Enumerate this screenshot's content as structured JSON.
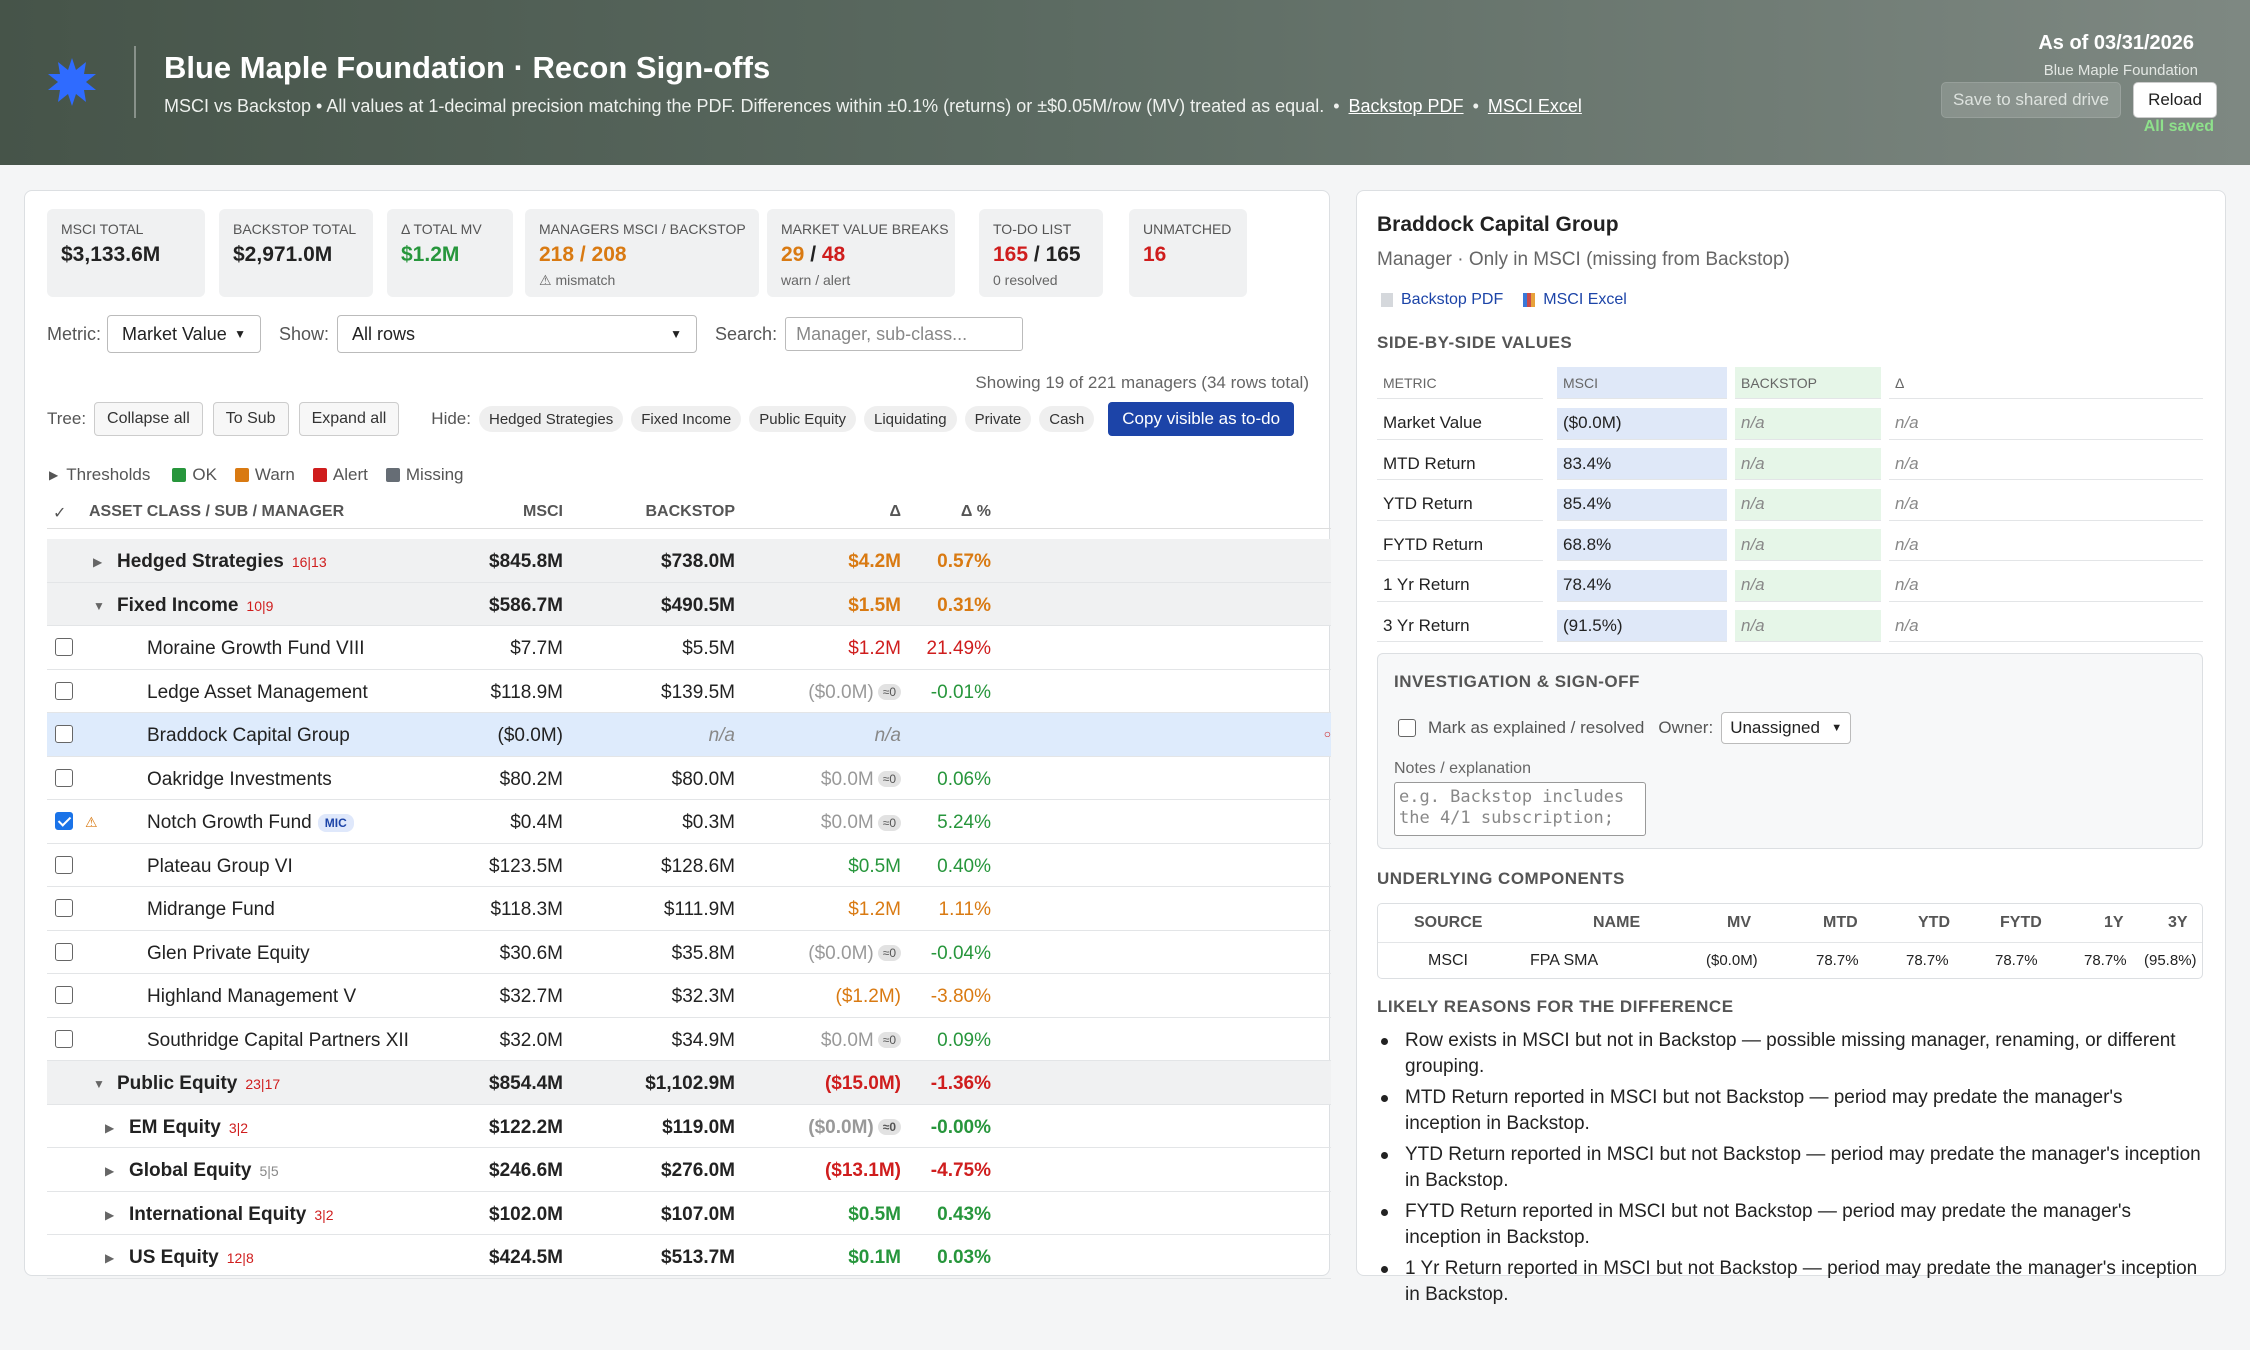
{
  "header": {
    "title": "Blue Maple Foundation · Recon Sign-offs",
    "subtitle": "MSCI vs Backstop  •  All values at 1-decimal precision matching the PDF. Differences within ±0.1% (returns) or ±$0.05M/row (MV) treated as equal.",
    "link_pdf": "Backstop PDF",
    "link_excel": "MSCI Excel",
    "as_of": "As of 03/31/2026",
    "org": "Blue Maple Foundation",
    "save_label": "Save to shared drive",
    "reload_label": "Reload",
    "saved_status": "All saved"
  },
  "cards": [
    {
      "label": "MSCI TOTAL",
      "value": "$3,133.6M"
    },
    {
      "label": "BACKSTOP TOTAL",
      "value": "$2,971.0M"
    },
    {
      "label": "Δ TOTAL MV",
      "value": "$1.2M"
    },
    {
      "label": "MANAGERS MSCI / BACKSTOP",
      "value": "218 / 208",
      "sub": "⚠ mismatch"
    },
    {
      "label": "MARKET VALUE BREAKS",
      "value_a": "29",
      "value_b": "48",
      "sub": "warn / alert"
    },
    {
      "label": "TO-DO LIST",
      "value_a": "165",
      "value_b": "165",
      "sub": "0 resolved"
    },
    {
      "label": "UNMATCHED",
      "value": "16"
    }
  ],
  "filters": {
    "metric_label": "Metric:",
    "metric_value": "Market Value",
    "show_label": "Show:",
    "show_value": "All rows",
    "search_label": "Search:",
    "search_placeholder": "Manager, sub-class..."
  },
  "showing": "Showing 19 of 221 managers (34 rows total)",
  "tree": {
    "label": "Tree:",
    "collapse": "Collapse all",
    "to_sub": "To Sub",
    "expand": "Expand all",
    "hide_label": "Hide:",
    "hide_pills": [
      "Hedged Strategies",
      "Fixed Income",
      "Public Equity",
      "Liquidating",
      "Private",
      "Cash"
    ],
    "copy": "Copy visible as to-do"
  },
  "legend": {
    "thresholds": "Thresholds",
    "ok": "OK",
    "warn": "Warn",
    "alert": "Alert",
    "missing": "Missing"
  },
  "colors": {
    "ok": "#27963c",
    "warn": "#d97a12",
    "alert": "#cf1d1d",
    "missing": "#666d75"
  },
  "table": {
    "check_header": "✓",
    "headers": {
      "name": "ASSET CLASS / SUB / MANAGER",
      "msci": "MSCI",
      "backstop": "BACKSTOP",
      "delta": "Δ",
      "delta_pct": "Δ %"
    },
    "rows": [
      {
        "type": "group",
        "name": "Hedged Strategies",
        "cnt": "16|13",
        "msci": "$845.8M",
        "backstop": "$738.0M",
        "delta": "$4.2M",
        "pct": "0.57%",
        "dc": "orange",
        "pc": "orange"
      },
      {
        "type": "group",
        "open": true,
        "name": "Fixed Income",
        "cnt": "10|9",
        "msci": "$586.7M",
        "backstop": "$490.5M",
        "delta": "$1.5M",
        "pct": "0.31%",
        "dc": "orange",
        "pc": "orange"
      },
      {
        "type": "mgr",
        "name": "Moraine Growth Fund VIII",
        "msci": "$7.7M",
        "backstop": "$5.5M",
        "delta": "$1.2M",
        "pct": "21.49%",
        "dc": "red",
        "pc": "red"
      },
      {
        "type": "mgr",
        "name": "Ledge Asset Management",
        "msci": "$118.9M",
        "backstop": "$139.5M",
        "delta": "($0.0M)",
        "eq": "≈0",
        "pct": "-0.01%",
        "dc": "gray",
        "pc": "green"
      },
      {
        "type": "mgr",
        "sel": true,
        "name": "Braddock Capital Group",
        "msci": "($0.0M)",
        "backstop": "n/a",
        "delta": "n/a",
        "pct": "",
        "na": true
      },
      {
        "type": "mgr",
        "name": "Oakridge Investments",
        "msci": "$80.2M",
        "backstop": "$80.0M",
        "delta": "$0.0M",
        "eq": "≈0",
        "pct": "0.06%",
        "dc": "gray",
        "pc": "green"
      },
      {
        "type": "mgr",
        "checked": true,
        "warn": true,
        "name": "Notch Growth Fund",
        "mic": "MIC",
        "msci": "$0.4M",
        "backstop": "$0.3M",
        "delta": "$0.0M",
        "eq": "≈0",
        "pct": "5.24%",
        "dc": "gray",
        "pc": "green"
      },
      {
        "type": "mgr",
        "name": "Plateau Group VI",
        "msci": "$123.5M",
        "backstop": "$128.6M",
        "delta": "$0.5M",
        "pct": "0.40%",
        "dc": "green",
        "pc": "green"
      },
      {
        "type": "mgr",
        "name": "Midrange Fund",
        "msci": "$118.3M",
        "backstop": "$111.9M",
        "delta": "$1.2M",
        "pct": "1.11%",
        "dc": "orange",
        "pc": "orange"
      },
      {
        "type": "mgr",
        "name": "Glen Private Equity",
        "msci": "$30.6M",
        "backstop": "$35.8M",
        "delta": "($0.0M)",
        "eq": "≈0",
        "pct": "-0.04%",
        "dc": "gray",
        "pc": "green"
      },
      {
        "type": "mgr",
        "name": "Highland Management V",
        "msci": "$32.7M",
        "backstop": "$32.3M",
        "delta": "($1.2M)",
        "pct": "-3.80%",
        "dc": "orange",
        "pc": "orange"
      },
      {
        "type": "mgr",
        "name": "Southridge Capital Partners XII",
        "msci": "$32.0M",
        "backstop": "$34.9M",
        "delta": "$0.0M",
        "eq": "≈0",
        "pct": "0.09%",
        "dc": "gray",
        "pc": "green"
      },
      {
        "type": "group",
        "open": true,
        "name": "Public Equity",
        "cnt": "23|17",
        "msci": "$854.4M",
        "backstop": "$1,102.9M",
        "delta": "($15.0M)",
        "pct": "-1.36%",
        "dc": "red",
        "pc": "red"
      },
      {
        "type": "sub",
        "name": "EM Equity",
        "cnt": "3|2",
        "msci": "$122.2M",
        "backstop": "$119.0M",
        "delta": "($0.0M)",
        "eq": "≈0",
        "pct": "-0.00%",
        "dc": "gray",
        "pc": "green"
      },
      {
        "type": "sub",
        "name": "Global Equity",
        "cnt": "5|5",
        "cntgray": true,
        "msci": "$246.6M",
        "backstop": "$276.0M",
        "delta": "($13.1M)",
        "pct": "-4.75%",
        "dc": "red",
        "pc": "red"
      },
      {
        "type": "sub",
        "name": "International Equity",
        "cnt": "3|2",
        "msci": "$102.0M",
        "backstop": "$107.0M",
        "delta": "$0.5M",
        "pct": "0.43%",
        "dc": "green",
        "pc": "green"
      },
      {
        "type": "sub",
        "name": "US Equity",
        "cnt": "12|8",
        "msci": "$424.5M",
        "backstop": "$513.7M",
        "delta": "$0.1M",
        "pct": "0.03%",
        "dc": "green",
        "pc": "green"
      }
    ]
  },
  "detail": {
    "title": "Braddock Capital Group",
    "subtitle": "Manager · Only in MSCI (missing from Backstop)",
    "link_pdf": "Backstop PDF",
    "link_excel": "MSCI Excel",
    "sbs_title": "SIDE-BY-SIDE VALUES",
    "sbs_headers": [
      "METRIC",
      "MSCI",
      "BACKSTOP",
      "Δ"
    ],
    "sbs_rows": [
      {
        "metric": "Market Value",
        "msci": "($0.0M)",
        "backstop": "n/a",
        "delta": "n/a"
      },
      {
        "metric": "MTD Return",
        "msci": "83.4%",
        "backstop": "n/a",
        "delta": "n/a"
      },
      {
        "metric": "YTD Return",
        "msci": "85.4%",
        "backstop": "n/a",
        "delta": "n/a"
      },
      {
        "metric": "FYTD Return",
        "msci": "68.8%",
        "backstop": "n/a",
        "delta": "n/a"
      },
      {
        "metric": "1 Yr Return",
        "msci": "78.4%",
        "backstop": "n/a",
        "delta": "n/a"
      },
      {
        "metric": "3 Yr Return",
        "msci": "(91.5%)",
        "backstop": "n/a",
        "delta": "n/a"
      }
    ],
    "inv_title": "INVESTIGATION & SIGN-OFF",
    "mark_label": "Mark as explained / resolved",
    "owner_label": "Owner:",
    "owner_value": "Unassigned",
    "notes_label": "Notes / explanation",
    "notes_placeholder": "e.g. Backstop includes the 4/1 subscription;",
    "comp_title": "UNDERLYING COMPONENTS",
    "comp_headers": [
      "SOURCE",
      "NAME",
      "MV",
      "MTD",
      "YTD",
      "FYTD",
      "1Y",
      "3Y"
    ],
    "comp_row": [
      "MSCI",
      "FPA SMA",
      "($0.0M)",
      "78.7%",
      "78.7%",
      "78.7%",
      "78.7%",
      "(95.8%)"
    ],
    "reasons_title": "LIKELY REASONS FOR THE DIFFERENCE",
    "reasons": [
      "Row exists in MSCI but not in Backstop — possible missing manager, renaming, or different grouping.",
      "MTD Return reported in MSCI but not Backstop — period may predate the manager's inception in Backstop.",
      "YTD Return reported in MSCI but not Backstop — period may predate the manager's inception in Backstop.",
      "FYTD Return reported in MSCI but not Backstop — period may predate the manager's inception in Backstop.",
      "1 Yr Return reported in MSCI but not Backstop — period may predate the manager's inception in Backstop."
    ]
  }
}
